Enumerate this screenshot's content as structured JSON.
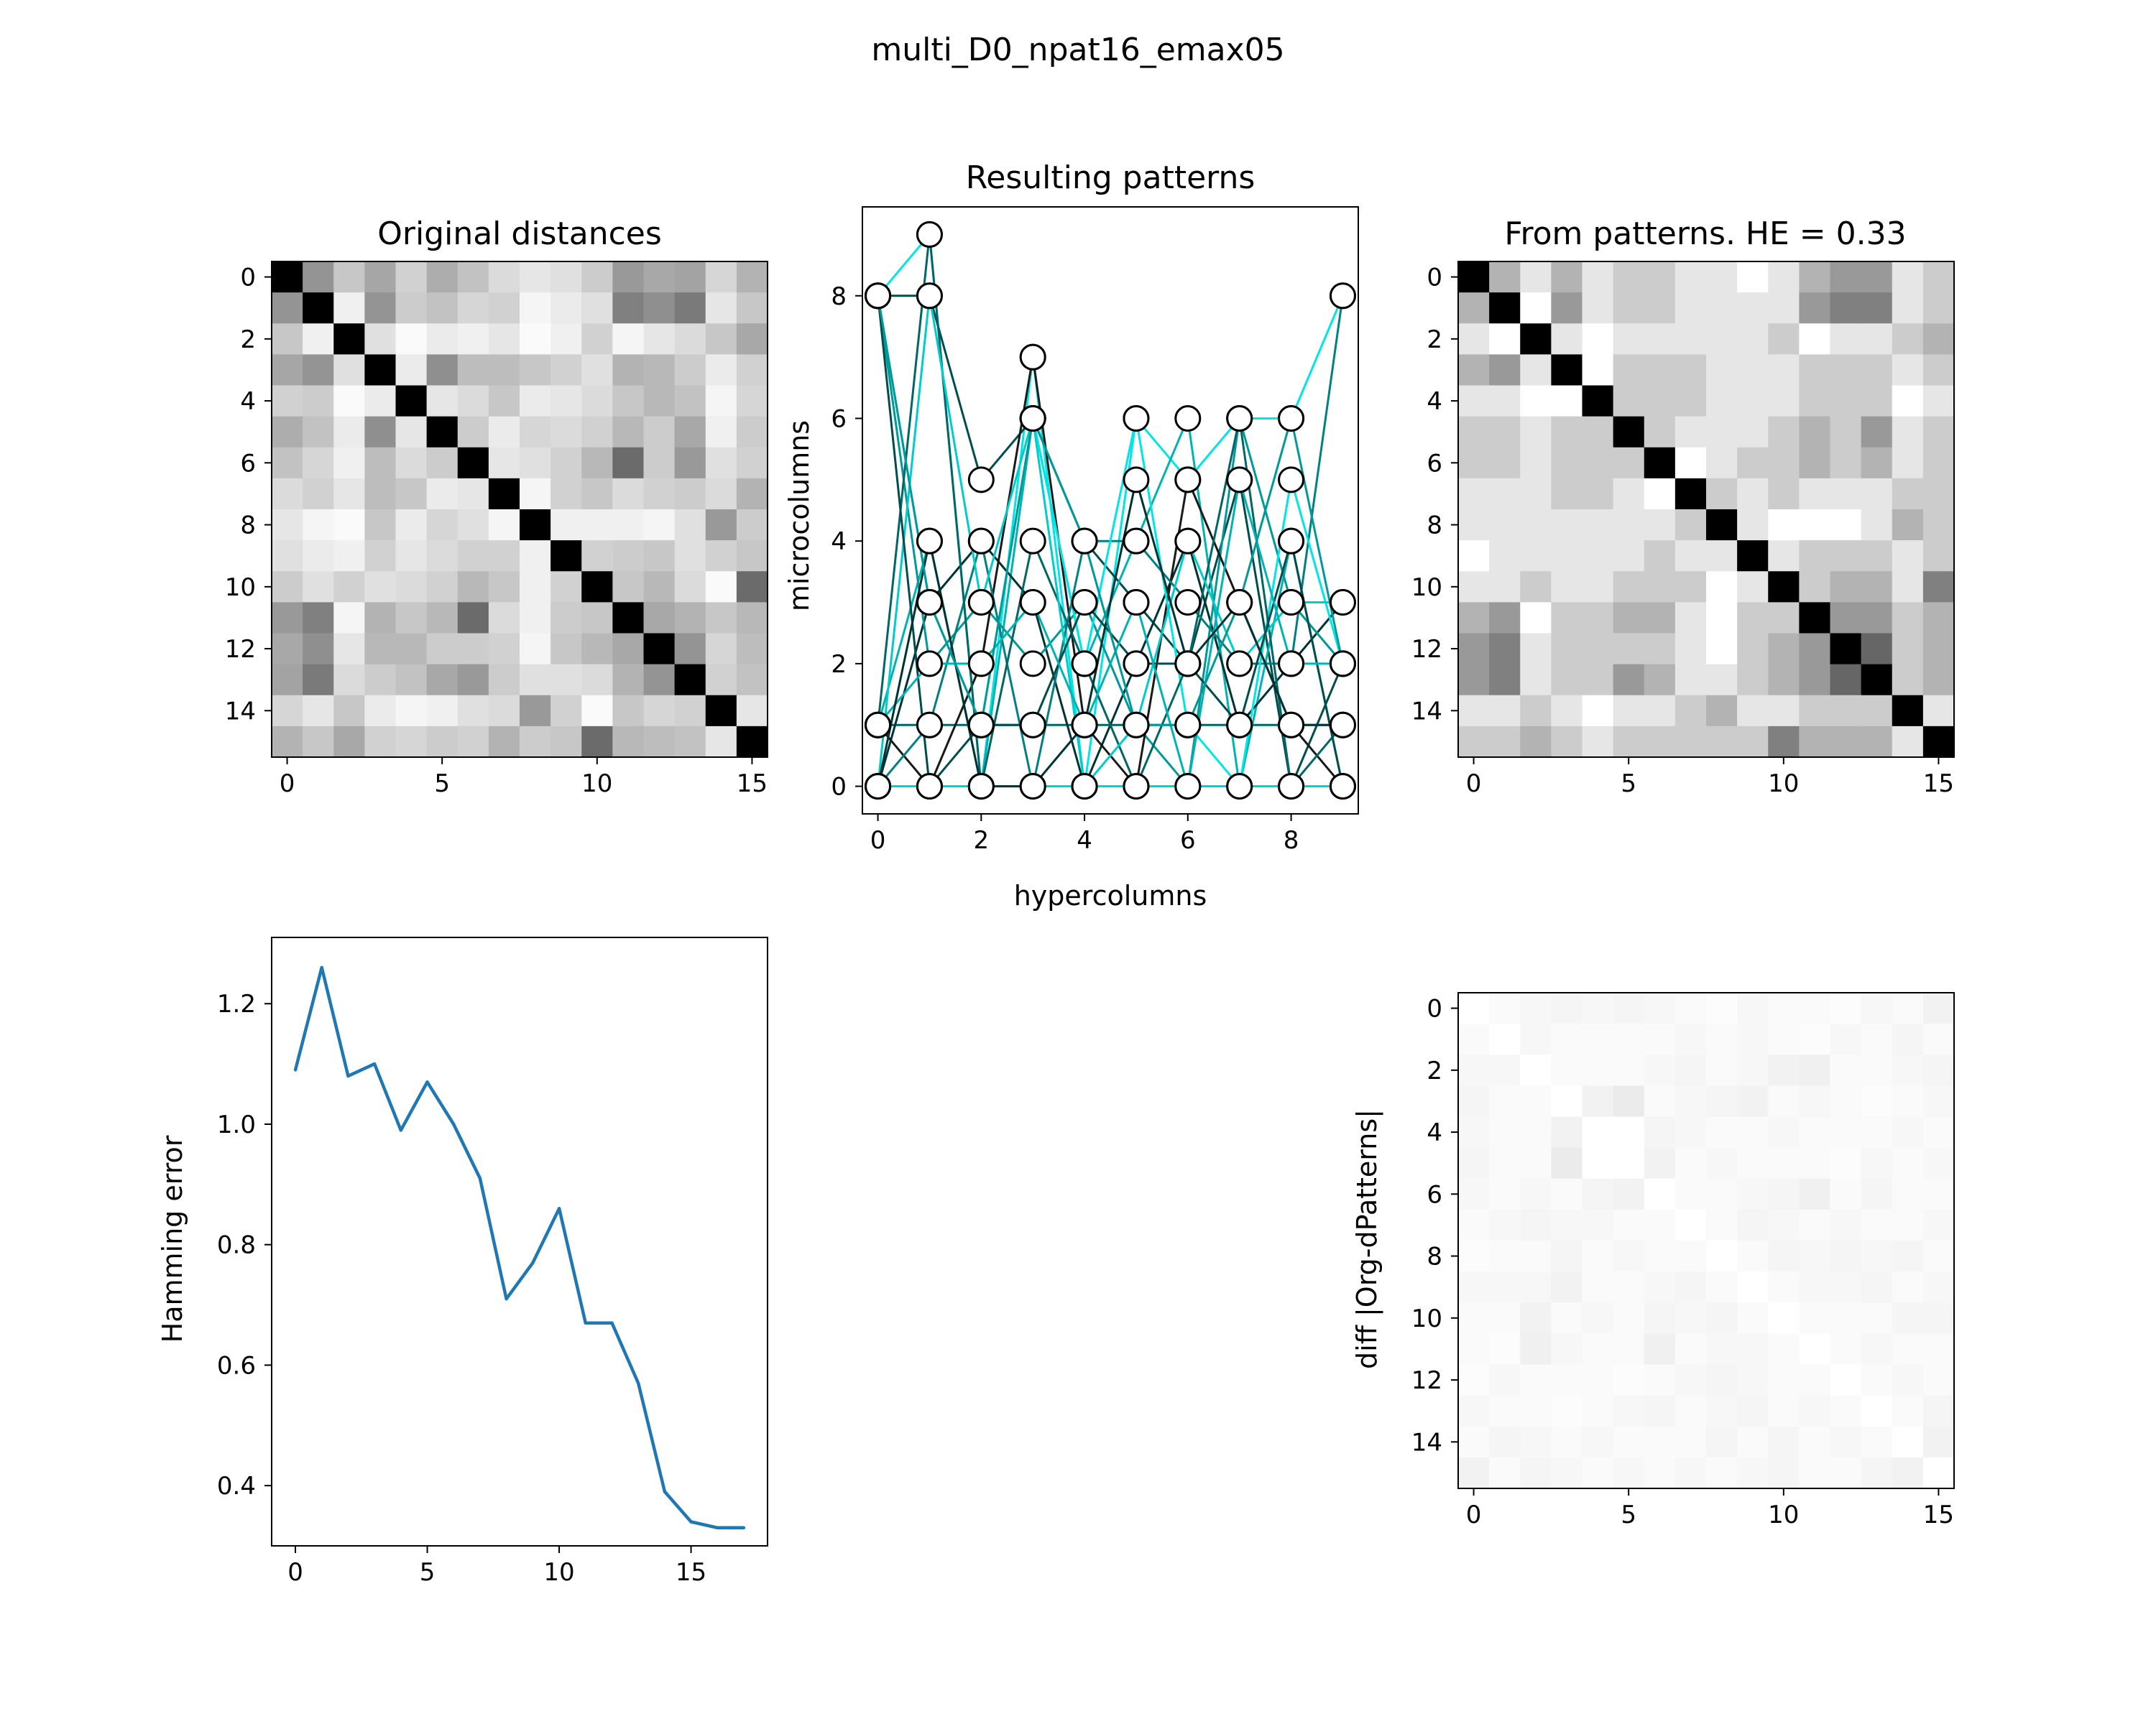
{
  "suptitle": "multi_D0_npat16_emax05",
  "colors": {
    "line": "#1f77b4",
    "pattern_palette": [
      "#00e5e5",
      "#00cccc",
      "#00b3b3",
      "#009999",
      "#008080",
      "#006666",
      "#004d4d",
      "#003333",
      "#1a1a1a"
    ],
    "marker_fill": "#ffffff",
    "marker_edge": "#000000"
  },
  "chart_data": [
    {
      "type": "heatmap",
      "title": "Original distances",
      "xlabel": "",
      "ylabel": "",
      "cmap": "gray_r",
      "xticks": [
        "0",
        "5",
        "10",
        "15"
      ],
      "yticks": [
        "0",
        "2",
        "4",
        "6",
        "8",
        "10",
        "12",
        "14"
      ],
      "matrix": [
        [
          1.0,
          0.42,
          0.22,
          0.35,
          0.18,
          0.32,
          0.24,
          0.14,
          0.1,
          0.12,
          0.2,
          0.4,
          0.34,
          0.36,
          0.16,
          0.3
        ],
        [
          0.42,
          1.0,
          0.06,
          0.42,
          0.2,
          0.24,
          0.16,
          0.18,
          0.04,
          0.08,
          0.12,
          0.5,
          0.44,
          0.52,
          0.1,
          0.22
        ],
        [
          0.22,
          0.06,
          1.0,
          0.12,
          0.02,
          0.08,
          0.06,
          0.1,
          0.02,
          0.06,
          0.18,
          0.04,
          0.1,
          0.14,
          0.22,
          0.34
        ],
        [
          0.35,
          0.42,
          0.12,
          1.0,
          0.08,
          0.44,
          0.26,
          0.26,
          0.22,
          0.18,
          0.12,
          0.3,
          0.28,
          0.2,
          0.08,
          0.18
        ],
        [
          0.18,
          0.2,
          0.02,
          0.08,
          1.0,
          0.1,
          0.14,
          0.22,
          0.08,
          0.1,
          0.14,
          0.22,
          0.28,
          0.24,
          0.04,
          0.16
        ],
        [
          0.32,
          0.24,
          0.08,
          0.44,
          0.1,
          1.0,
          0.2,
          0.08,
          0.16,
          0.14,
          0.18,
          0.28,
          0.2,
          0.34,
          0.06,
          0.2
        ],
        [
          0.24,
          0.16,
          0.06,
          0.26,
          0.14,
          0.2,
          1.0,
          0.1,
          0.12,
          0.18,
          0.28,
          0.58,
          0.2,
          0.4,
          0.12,
          0.18
        ],
        [
          0.14,
          0.18,
          0.1,
          0.26,
          0.22,
          0.08,
          0.1,
          1.0,
          0.04,
          0.18,
          0.22,
          0.14,
          0.18,
          0.2,
          0.14,
          0.3
        ],
        [
          0.1,
          0.04,
          0.02,
          0.22,
          0.08,
          0.16,
          0.12,
          0.04,
          1.0,
          0.06,
          0.06,
          0.06,
          0.04,
          0.12,
          0.4,
          0.2
        ],
        [
          0.12,
          0.08,
          0.06,
          0.18,
          0.1,
          0.14,
          0.18,
          0.18,
          0.06,
          1.0,
          0.18,
          0.2,
          0.22,
          0.12,
          0.18,
          0.22
        ],
        [
          0.2,
          0.12,
          0.18,
          0.12,
          0.14,
          0.18,
          0.28,
          0.22,
          0.06,
          0.18,
          1.0,
          0.22,
          0.28,
          0.14,
          0.02,
          0.58
        ],
        [
          0.4,
          0.5,
          0.04,
          0.3,
          0.22,
          0.28,
          0.58,
          0.14,
          0.06,
          0.2,
          0.22,
          1.0,
          0.34,
          0.3,
          0.22,
          0.28
        ],
        [
          0.34,
          0.44,
          0.1,
          0.28,
          0.28,
          0.2,
          0.2,
          0.18,
          0.04,
          0.22,
          0.28,
          0.34,
          1.0,
          0.42,
          0.16,
          0.26
        ],
        [
          0.36,
          0.52,
          0.14,
          0.2,
          0.24,
          0.34,
          0.4,
          0.2,
          0.12,
          0.12,
          0.14,
          0.3,
          0.42,
          1.0,
          0.18,
          0.24
        ],
        [
          0.16,
          0.1,
          0.22,
          0.08,
          0.04,
          0.06,
          0.12,
          0.14,
          0.4,
          0.18,
          0.02,
          0.22,
          0.16,
          0.18,
          1.0,
          0.1
        ],
        [
          0.3,
          0.22,
          0.34,
          0.18,
          0.16,
          0.2,
          0.18,
          0.3,
          0.2,
          0.22,
          0.58,
          0.28,
          0.26,
          0.24,
          0.1,
          1.0
        ]
      ]
    },
    {
      "type": "scatter",
      "title": "Resulting patterns",
      "xlabel": "hypercolumns",
      "ylabel": "microcolumns",
      "xlim": [
        -0.3,
        9.3
      ],
      "ylim": [
        -0.45,
        9.45
      ],
      "xticks": [
        0,
        2,
        4,
        6,
        8
      ],
      "yticks": [
        0,
        2,
        4,
        6,
        8
      ],
      "hypercolumns": [
        0,
        1,
        2,
        3,
        4,
        5,
        6,
        7,
        8,
        9
      ],
      "patterns": [
        [
          8,
          9,
          0,
          7,
          0,
          6,
          5,
          6,
          6,
          8
        ],
        [
          1,
          1,
          1,
          1,
          1,
          1,
          1,
          1,
          1,
          1
        ],
        [
          0,
          0,
          0,
          0,
          0,
          0,
          0,
          0,
          0,
          0
        ],
        [
          8,
          8,
          5,
          6,
          4,
          3,
          2,
          5,
          0,
          2
        ],
        [
          1,
          4,
          0,
          6,
          2,
          4,
          6,
          0,
          4,
          0
        ],
        [
          0,
          3,
          4,
          3,
          0,
          2,
          4,
          1,
          2,
          3
        ],
        [
          8,
          2,
          3,
          2,
          3,
          1,
          0,
          6,
          3,
          2
        ],
        [
          1,
          0,
          2,
          7,
          1,
          0,
          5,
          3,
          1,
          0
        ],
        [
          0,
          1,
          4,
          0,
          4,
          4,
          3,
          2,
          2,
          8
        ],
        [
          8,
          3,
          1,
          6,
          2,
          6,
          1,
          0,
          5,
          2
        ],
        [
          1,
          9,
          0,
          4,
          2,
          0,
          2,
          6,
          0,
          1
        ],
        [
          0,
          8,
          3,
          6,
          0,
          1,
          4,
          2,
          3,
          3
        ],
        [
          8,
          0,
          1,
          1,
          3,
          2,
          2,
          1,
          4,
          0
        ],
        [
          1,
          2,
          2,
          3,
          1,
          3,
          0,
          5,
          2,
          2
        ],
        [
          0,
          4,
          0,
          0,
          1,
          5,
          2,
          3,
          1,
          1
        ],
        [
          8,
          3,
          1,
          6,
          4,
          1,
          1,
          3,
          6,
          2
        ]
      ]
    },
    {
      "type": "heatmap",
      "title": "From patterns. HE = 0.33",
      "xlabel": "",
      "ylabel": "",
      "cmap": "gray_r",
      "xticks": [
        "0",
        "5",
        "10",
        "15"
      ],
      "yticks": [
        "0",
        "2",
        "4",
        "6",
        "8",
        "10",
        "12",
        "14"
      ],
      "matrix": [
        [
          1.0,
          0.3,
          0.1,
          0.3,
          0.1,
          0.2,
          0.2,
          0.1,
          0.1,
          0.0,
          0.1,
          0.3,
          0.4,
          0.4,
          0.1,
          0.2
        ],
        [
          0.3,
          1.0,
          0.0,
          0.4,
          0.1,
          0.2,
          0.2,
          0.1,
          0.1,
          0.1,
          0.1,
          0.4,
          0.5,
          0.5,
          0.1,
          0.2
        ],
        [
          0.1,
          0.0,
          1.0,
          0.1,
          0.0,
          0.1,
          0.1,
          0.1,
          0.1,
          0.1,
          0.2,
          0.0,
          0.1,
          0.1,
          0.2,
          0.3
        ],
        [
          0.3,
          0.4,
          0.1,
          1.0,
          0.0,
          0.2,
          0.2,
          0.2,
          0.1,
          0.1,
          0.1,
          0.2,
          0.2,
          0.2,
          0.1,
          0.2
        ],
        [
          0.1,
          0.1,
          0.0,
          0.0,
          1.0,
          0.2,
          0.2,
          0.2,
          0.1,
          0.1,
          0.1,
          0.2,
          0.2,
          0.2,
          0.0,
          0.1
        ],
        [
          0.2,
          0.2,
          0.1,
          0.2,
          0.2,
          1.0,
          0.2,
          0.1,
          0.1,
          0.1,
          0.2,
          0.3,
          0.2,
          0.4,
          0.1,
          0.2
        ],
        [
          0.2,
          0.2,
          0.1,
          0.2,
          0.2,
          0.2,
          1.0,
          0.0,
          0.1,
          0.2,
          0.2,
          0.3,
          0.2,
          0.3,
          0.1,
          0.2
        ],
        [
          0.1,
          0.1,
          0.1,
          0.2,
          0.2,
          0.1,
          0.0,
          1.0,
          0.2,
          0.1,
          0.2,
          0.1,
          0.1,
          0.1,
          0.2,
          0.2
        ],
        [
          0.1,
          0.1,
          0.1,
          0.1,
          0.1,
          0.1,
          0.1,
          0.2,
          1.0,
          0.1,
          0.0,
          0.0,
          0.0,
          0.1,
          0.3,
          0.2
        ],
        [
          0.0,
          0.1,
          0.1,
          0.1,
          0.1,
          0.1,
          0.2,
          0.1,
          0.1,
          1.0,
          0.1,
          0.2,
          0.2,
          0.2,
          0.1,
          0.2
        ],
        [
          0.1,
          0.1,
          0.2,
          0.1,
          0.1,
          0.2,
          0.2,
          0.2,
          0.0,
          0.1,
          1.0,
          0.2,
          0.3,
          0.3,
          0.1,
          0.5
        ],
        [
          0.3,
          0.4,
          0.0,
          0.2,
          0.2,
          0.3,
          0.3,
          0.1,
          0.0,
          0.2,
          0.2,
          1.0,
          0.4,
          0.4,
          0.2,
          0.3
        ],
        [
          0.4,
          0.5,
          0.1,
          0.2,
          0.2,
          0.2,
          0.2,
          0.1,
          0.0,
          0.2,
          0.3,
          0.4,
          1.0,
          0.6,
          0.2,
          0.3
        ],
        [
          0.4,
          0.5,
          0.1,
          0.2,
          0.2,
          0.4,
          0.3,
          0.1,
          0.1,
          0.2,
          0.3,
          0.4,
          0.6,
          1.0,
          0.2,
          0.3
        ],
        [
          0.1,
          0.1,
          0.2,
          0.1,
          0.0,
          0.1,
          0.1,
          0.2,
          0.3,
          0.1,
          0.1,
          0.2,
          0.2,
          0.2,
          1.0,
          0.1
        ],
        [
          0.2,
          0.2,
          0.3,
          0.2,
          0.1,
          0.2,
          0.2,
          0.2,
          0.2,
          0.2,
          0.5,
          0.3,
          0.3,
          0.3,
          0.1,
          1.0
        ]
      ]
    },
    {
      "type": "line",
      "title": "",
      "xlabel": "",
      "ylabel": "Hamming error",
      "xlim": [
        -0.9,
        17.9
      ],
      "ylim": [
        0.3,
        1.31
      ],
      "xticks": [
        0,
        5,
        10,
        15
      ],
      "yticks": [
        "0.4",
        "0.6",
        "0.8",
        "1.0",
        "1.2"
      ],
      "x": [
        0,
        1,
        2,
        3,
        4,
        5,
        6,
        7,
        8,
        9,
        10,
        11,
        12,
        13,
        14,
        15,
        16,
        17
      ],
      "y": [
        1.09,
        1.26,
        1.08,
        1.1,
        0.99,
        1.07,
        1.0,
        0.91,
        0.71,
        0.77,
        0.86,
        0.67,
        0.67,
        0.57,
        0.39,
        0.34,
        0.33,
        0.33
      ]
    },
    {
      "type": "heatmap",
      "title": "",
      "xlabel": "",
      "ylabel": "diff |Org-dPatterns|",
      "cmap": "gray_r",
      "vmax": 1.0,
      "xticks": [
        "0",
        "5",
        "10",
        "15"
      ],
      "yticks": [
        "0",
        "2",
        "4",
        "6",
        "8",
        "10",
        "12",
        "14"
      ],
      "matrix": [
        [
          0.0,
          0.02,
          0.03,
          0.04,
          0.03,
          0.04,
          0.03,
          0.02,
          0.01,
          0.03,
          0.02,
          0.02,
          0.01,
          0.03,
          0.02,
          0.05
        ],
        [
          0.02,
          0.0,
          0.03,
          0.02,
          0.02,
          0.02,
          0.02,
          0.03,
          0.02,
          0.03,
          0.02,
          0.01,
          0.03,
          0.02,
          0.04,
          0.02
        ],
        [
          0.03,
          0.03,
          0.0,
          0.02,
          0.02,
          0.02,
          0.03,
          0.04,
          0.02,
          0.03,
          0.05,
          0.06,
          0.02,
          0.02,
          0.03,
          0.04
        ],
        [
          0.04,
          0.02,
          0.02,
          0.0,
          0.05,
          0.08,
          0.02,
          0.03,
          0.04,
          0.05,
          0.02,
          0.03,
          0.02,
          0.01,
          0.02,
          0.03
        ],
        [
          0.03,
          0.02,
          0.02,
          0.05,
          0.0,
          0.0,
          0.04,
          0.03,
          0.02,
          0.02,
          0.03,
          0.02,
          0.02,
          0.02,
          0.03,
          0.02
        ],
        [
          0.04,
          0.02,
          0.02,
          0.08,
          0.0,
          0.0,
          0.05,
          0.02,
          0.03,
          0.02,
          0.02,
          0.02,
          0.01,
          0.03,
          0.02,
          0.03
        ],
        [
          0.03,
          0.02,
          0.03,
          0.02,
          0.04,
          0.05,
          0.0,
          0.02,
          0.02,
          0.03,
          0.04,
          0.06,
          0.02,
          0.04,
          0.02,
          0.02
        ],
        [
          0.02,
          0.03,
          0.04,
          0.03,
          0.03,
          0.02,
          0.02,
          0.0,
          0.02,
          0.04,
          0.03,
          0.02,
          0.03,
          0.02,
          0.02,
          0.03
        ],
        [
          0.01,
          0.02,
          0.02,
          0.04,
          0.02,
          0.03,
          0.02,
          0.02,
          0.0,
          0.02,
          0.04,
          0.03,
          0.04,
          0.03,
          0.04,
          0.02
        ],
        [
          0.03,
          0.03,
          0.03,
          0.05,
          0.02,
          0.02,
          0.03,
          0.04,
          0.02,
          0.0,
          0.02,
          0.03,
          0.03,
          0.04,
          0.02,
          0.03
        ],
        [
          0.02,
          0.02,
          0.05,
          0.02,
          0.03,
          0.02,
          0.04,
          0.03,
          0.04,
          0.02,
          0.0,
          0.02,
          0.02,
          0.02,
          0.04,
          0.04
        ],
        [
          0.02,
          0.01,
          0.06,
          0.03,
          0.02,
          0.02,
          0.06,
          0.02,
          0.03,
          0.03,
          0.02,
          0.0,
          0.02,
          0.03,
          0.02,
          0.02
        ],
        [
          0.01,
          0.03,
          0.02,
          0.02,
          0.02,
          0.01,
          0.02,
          0.03,
          0.04,
          0.03,
          0.02,
          0.02,
          0.0,
          0.02,
          0.03,
          0.02
        ],
        [
          0.03,
          0.02,
          0.02,
          0.01,
          0.02,
          0.03,
          0.04,
          0.02,
          0.03,
          0.04,
          0.02,
          0.03,
          0.02,
          0.0,
          0.02,
          0.04
        ],
        [
          0.02,
          0.04,
          0.03,
          0.02,
          0.03,
          0.02,
          0.02,
          0.02,
          0.04,
          0.02,
          0.04,
          0.02,
          0.03,
          0.02,
          0.0,
          0.05
        ],
        [
          0.05,
          0.02,
          0.04,
          0.03,
          0.02,
          0.03,
          0.02,
          0.03,
          0.02,
          0.03,
          0.04,
          0.02,
          0.02,
          0.04,
          0.05,
          0.0
        ]
      ]
    }
  ]
}
